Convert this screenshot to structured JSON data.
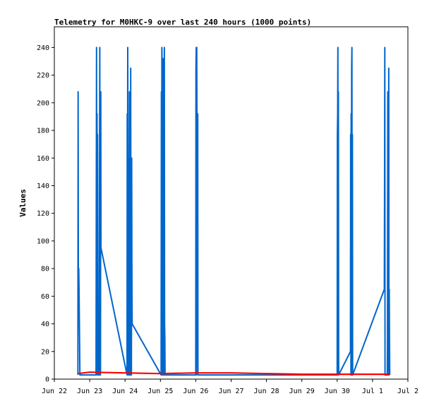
{
  "chart_data": {
    "type": "line",
    "title": "Telemetry for M0HKC-9 over last 240 hours (1000 points)",
    "xlabel": "",
    "ylabel": "Values",
    "ylim": [
      0,
      255
    ],
    "yticks": [
      0,
      20,
      40,
      60,
      80,
      100,
      120,
      140,
      160,
      180,
      200,
      220,
      240
    ],
    "xlim": [
      "2024-06-22",
      "2024-07-02"
    ],
    "xticks": [
      {
        "label": "Jun 22",
        "date": "2024-06-22"
      },
      {
        "label": "Jun 23",
        "date": "2024-06-23"
      },
      {
        "label": "Jun 24",
        "date": "2024-06-24"
      },
      {
        "label": "Jun 25",
        "date": "2024-06-25"
      },
      {
        "label": "Jun 26",
        "date": "2024-06-26"
      },
      {
        "label": "Jun 27",
        "date": "2024-06-27"
      },
      {
        "label": "Jun 28",
        "date": "2024-06-28"
      },
      {
        "label": "Jun 29",
        "date": "2024-06-29"
      },
      {
        "label": "Jun 30",
        "date": "2024-06-30"
      },
      {
        "label": "Jul 1",
        "date": "2024-07-01"
      },
      {
        "label": "Jul 2",
        "date": "2024-07-02"
      }
    ],
    "grid": false,
    "legend": "none",
    "series": [
      {
        "color": "#0066cc",
        "points": [
          [
            "2024-06-22 16:00",
            3
          ],
          [
            "2024-06-22 16:10",
            208
          ],
          [
            "2024-06-22 16:20",
            50
          ],
          [
            "2024-06-22 16:35",
            80
          ],
          [
            "2024-06-22 16:45",
            65
          ],
          [
            "2024-06-22 17:00",
            40
          ],
          [
            "2024-06-22 17:10",
            25
          ],
          [
            "2024-06-22 17:20",
            3
          ],
          [
            "2024-06-23 04:20",
            3
          ],
          [
            "2024-06-23 04:30",
            145
          ],
          [
            "2024-06-23 04:40",
            240
          ],
          [
            "2024-06-23 04:50",
            5
          ],
          [
            "2024-06-23 05:00",
            192
          ],
          [
            "2024-06-23 05:10",
            3
          ],
          [
            "2024-06-23 05:20",
            177
          ],
          [
            "2024-06-23 05:30",
            90
          ],
          [
            "2024-06-23 05:40",
            30
          ],
          [
            "2024-06-23 05:50",
            3
          ],
          [
            "2024-06-23 06:30",
            3
          ],
          [
            "2024-06-23 06:40",
            145
          ],
          [
            "2024-06-23 06:50",
            240
          ],
          [
            "2024-06-23 07:00",
            70
          ],
          [
            "2024-06-23 07:10",
            208
          ],
          [
            "2024-06-23 07:20",
            3
          ],
          [
            "2024-06-23 07:30",
            208
          ],
          [
            "2024-06-23 07:40",
            95
          ],
          [
            "2024-06-24 01:20",
            3
          ],
          [
            "2024-06-24 01:30",
            192
          ],
          [
            "2024-06-24 01:40",
            95
          ],
          [
            "2024-06-24 01:50",
            240
          ],
          [
            "2024-06-24 02:00",
            145
          ],
          [
            "2024-06-24 02:10",
            3
          ],
          [
            "2024-06-24 02:20",
            160
          ],
          [
            "2024-06-24 02:30",
            130
          ],
          [
            "2024-06-24 02:40",
            112
          ],
          [
            "2024-06-24 02:50",
            3
          ],
          [
            "2024-06-24 03:00",
            208
          ],
          [
            "2024-06-24 03:10",
            3
          ],
          [
            "2024-06-24 03:30",
            3
          ],
          [
            "2024-06-24 03:40",
            80
          ],
          [
            "2024-06-24 03:50",
            225
          ],
          [
            "2024-06-24 04:00",
            3
          ],
          [
            "2024-06-24 04:10",
            160
          ],
          [
            "2024-06-24 04:20",
            3
          ],
          [
            "2024-06-24 04:30",
            160
          ],
          [
            "2024-06-24 04:40",
            80
          ],
          [
            "2024-06-24 04:50",
            40
          ],
          [
            "2024-06-25 00:30",
            3
          ],
          [
            "2024-06-25 00:40",
            208
          ],
          [
            "2024-06-25 00:50",
            50
          ],
          [
            "2024-06-25 01:00",
            240
          ],
          [
            "2024-06-25 01:10",
            225
          ],
          [
            "2024-06-25 01:20",
            3
          ],
          [
            "2024-06-25 01:30",
            192
          ],
          [
            "2024-06-25 01:40",
            3
          ],
          [
            "2024-06-25 01:50",
            232
          ],
          [
            "2024-06-25 02:00",
            3
          ],
          [
            "2024-06-25 02:10",
            110
          ],
          [
            "2024-06-25 02:20",
            208
          ],
          [
            "2024-06-25 02:30",
            3
          ],
          [
            "2024-06-25 02:40",
            240
          ],
          [
            "2024-06-25 02:50",
            40
          ],
          [
            "2024-06-25 03:00",
            30
          ],
          [
            "2024-06-25 03:10",
            3
          ],
          [
            "2024-06-26 00:00",
            3
          ],
          [
            "2024-06-26 00:10",
            225
          ],
          [
            "2024-06-26 00:20",
            240
          ],
          [
            "2024-06-26 00:30",
            3
          ],
          [
            "2024-06-26 00:40",
            240
          ],
          [
            "2024-06-26 00:50",
            192
          ],
          [
            "2024-06-26 01:00",
            15
          ],
          [
            "2024-06-26 01:10",
            160
          ],
          [
            "2024-06-26 01:20",
            192
          ],
          [
            "2024-06-26 01:30",
            3
          ],
          [
            "2024-06-30 00:00",
            3
          ],
          [
            "2024-06-30 00:10",
            177
          ],
          [
            "2024-06-30 00:20",
            192
          ],
          [
            "2024-06-30 00:30",
            240
          ],
          [
            "2024-06-30 00:40",
            5
          ],
          [
            "2024-06-30 00:50",
            208
          ],
          [
            "2024-06-30 01:00",
            3
          ],
          [
            "2024-06-30 09:00",
            20
          ],
          [
            "2024-06-30 09:10",
            177
          ],
          [
            "2024-06-30 09:20",
            3
          ],
          [
            "2024-06-30 09:30",
            192
          ],
          [
            "2024-06-30 09:40",
            3
          ],
          [
            "2024-06-30 09:50",
            225
          ],
          [
            "2024-06-30 10:00",
            240
          ],
          [
            "2024-06-30 10:10",
            3
          ],
          [
            "2024-06-30 10:20",
            177
          ],
          [
            "2024-06-30 10:30",
            3
          ],
          [
            "2024-07-01 08:00",
            65
          ],
          [
            "2024-07-01 08:10",
            128
          ],
          [
            "2024-07-01 08:20",
            240
          ],
          [
            "2024-07-01 08:30",
            3
          ],
          [
            "2024-07-01 10:00",
            3
          ],
          [
            "2024-07-01 10:10",
            32
          ],
          [
            "2024-07-01 10:20",
            208
          ],
          [
            "2024-07-01 10:30",
            145
          ],
          [
            "2024-07-01 10:40",
            3
          ],
          [
            "2024-07-01 10:50",
            128
          ],
          [
            "2024-07-01 11:00",
            225
          ],
          [
            "2024-07-01 11:10",
            3
          ],
          [
            "2024-07-01 11:20",
            65
          ],
          [
            "2024-07-01 11:30",
            32
          ],
          [
            "2024-07-01 11:40",
            3
          ]
        ]
      },
      {
        "color": "#ff0000",
        "points": [
          [
            "2024-06-22 16:00",
            4
          ],
          [
            "2024-06-23 00:00",
            5
          ],
          [
            "2024-06-24 00:00",
            4.5
          ],
          [
            "2024-06-25 00:00",
            4
          ],
          [
            "2024-06-26 00:00",
            4.5
          ],
          [
            "2024-06-27 00:00",
            4.5
          ],
          [
            "2024-06-28 00:00",
            4
          ],
          [
            "2024-06-29 00:00",
            3.5
          ],
          [
            "2024-06-30 00:00",
            3.5
          ],
          [
            "2024-07-01 00:00",
            3.5
          ],
          [
            "2024-07-01 11:40",
            3.5
          ]
        ]
      }
    ]
  }
}
